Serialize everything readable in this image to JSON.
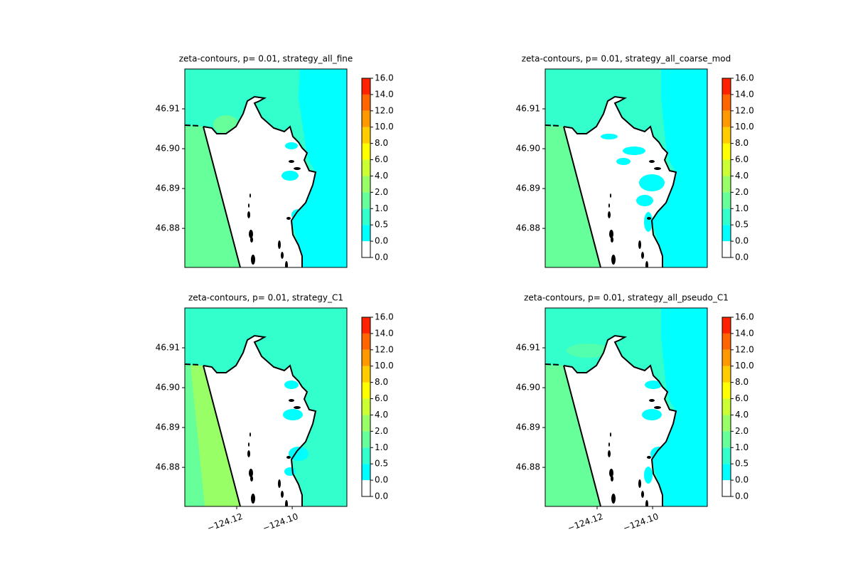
{
  "chart_data": [
    {
      "type": "contour",
      "title": "zeta-contours, p= 0.01, strategy_all_fine",
      "xlim": [
        -124.1387,
        -124.0803
      ],
      "ylim": [
        46.8702,
        46.92
      ],
      "yticks": [
        46.88,
        46.89,
        {
          "value": 46.9,
          "label": "46.90"
        },
        46.91
      ],
      "levels": [
        {
          "value": 0,
          "label": "0.0"
        },
        {
          "value": 0,
          "label": "0.0"
        },
        0.5,
        {
          "value": 1,
          "label": "1.0"
        },
        {
          "value": 2,
          "label": "2.0"
        },
        {
          "value": 4,
          "label": "4.0"
        },
        {
          "value": 6,
          "label": "6.0"
        },
        {
          "value": 8,
          "label": "8.0"
        },
        {
          "value": 10,
          "label": "10.0"
        },
        {
          "value": 12,
          "label": "12.0"
        },
        {
          "value": 14,
          "label": "14.0"
        },
        {
          "value": 16,
          "label": "16.0"
        }
      ],
      "colors": [
        "#ffffff",
        "#00ffff",
        "#33ffcc",
        "#66ff99",
        "#99ff66",
        "#ccff33",
        "#ffff00",
        "#ffcc00",
        "#ff9900",
        "#ff6600",
        "#ff2200"
      ]
    },
    {
      "type": "contour",
      "title": "zeta-contours, p= 0.01, strategy_all_coarse_mod",
      "xlim": [
        -124.1387,
        -124.0803
      ],
      "ylim": [
        46.8702,
        46.92
      ],
      "yticks": [
        46.88,
        46.89,
        {
          "value": 46.9,
          "label": "46.90"
        },
        46.91
      ],
      "levels": [
        {
          "value": 0,
          "label": "0.0"
        },
        {
          "value": 0,
          "label": "0.0"
        },
        0.5,
        {
          "value": 1,
          "label": "1.0"
        },
        {
          "value": 2,
          "label": "2.0"
        },
        {
          "value": 4,
          "label": "4.0"
        },
        {
          "value": 6,
          "label": "6.0"
        },
        {
          "value": 8,
          "label": "8.0"
        },
        {
          "value": 10,
          "label": "10.0"
        },
        {
          "value": 12,
          "label": "12.0"
        },
        {
          "value": 14,
          "label": "14.0"
        },
        {
          "value": 16,
          "label": "16.0"
        }
      ],
      "colors": [
        "#ffffff",
        "#00ffff",
        "#33ffcc",
        "#66ff99",
        "#99ff66",
        "#ccff33",
        "#ffff00",
        "#ffcc00",
        "#ff9900",
        "#ff6600",
        "#ff2200"
      ]
    },
    {
      "type": "contour",
      "title": "zeta-contours, p= 0.01, strategy_C1",
      "xlim": [
        -124.1387,
        -124.0803
      ],
      "ylim": [
        46.8702,
        46.92
      ],
      "xticks": [
        {
          "value": -124.12,
          "label": "−124.12"
        },
        {
          "value": -124.1,
          "label": "−124.10"
        }
      ],
      "yticks": [
        46.88,
        46.89,
        {
          "value": 46.9,
          "label": "46.90"
        },
        46.91
      ],
      "levels": [
        {
          "value": 0,
          "label": "0.0"
        },
        {
          "value": 0,
          "label": "0.0"
        },
        0.5,
        {
          "value": 1,
          "label": "1.0"
        },
        {
          "value": 2,
          "label": "2.0"
        },
        {
          "value": 4,
          "label": "4.0"
        },
        {
          "value": 6,
          "label": "6.0"
        },
        {
          "value": 8,
          "label": "8.0"
        },
        {
          "value": 10,
          "label": "10.0"
        },
        {
          "value": 12,
          "label": "12.0"
        },
        {
          "value": 14,
          "label": "14.0"
        },
        {
          "value": 16,
          "label": "16.0"
        }
      ],
      "colors": [
        "#ffffff",
        "#00ffff",
        "#33ffcc",
        "#66ff99",
        "#99ff66",
        "#ccff33",
        "#ffff00",
        "#ffcc00",
        "#ff9900",
        "#ff6600",
        "#ff2200"
      ]
    },
    {
      "type": "contour",
      "title": "zeta-contours, p= 0.01, strategy_all_pseudo_C1",
      "xlim": [
        -124.1387,
        -124.0803
      ],
      "ylim": [
        46.8702,
        46.92
      ],
      "xticks": [
        {
          "value": -124.12,
          "label": "−124.12"
        },
        {
          "value": -124.1,
          "label": "−124.10"
        }
      ],
      "yticks": [
        46.88,
        46.89,
        {
          "value": 46.9,
          "label": "46.90"
        },
        46.91
      ],
      "levels": [
        {
          "value": 0,
          "label": "0.0"
        },
        {
          "value": 0,
          "label": "0.0"
        },
        0.5,
        {
          "value": 1,
          "label": "1.0"
        },
        {
          "value": 2,
          "label": "2.0"
        },
        {
          "value": 4,
          "label": "4.0"
        },
        {
          "value": 6,
          "label": "6.0"
        },
        {
          "value": 8,
          "label": "8.0"
        },
        {
          "value": 10,
          "label": "10.0"
        },
        {
          "value": 12,
          "label": "12.0"
        },
        {
          "value": 14,
          "label": "14.0"
        },
        {
          "value": 16,
          "label": "16.0"
        }
      ],
      "colors": [
        "#ffffff",
        "#00ffff",
        "#33ffcc",
        "#66ff99",
        "#99ff66",
        "#ccff33",
        "#ffff00",
        "#ffcc00",
        "#ff9900",
        "#ff6600",
        "#ff2200"
      ]
    }
  ]
}
